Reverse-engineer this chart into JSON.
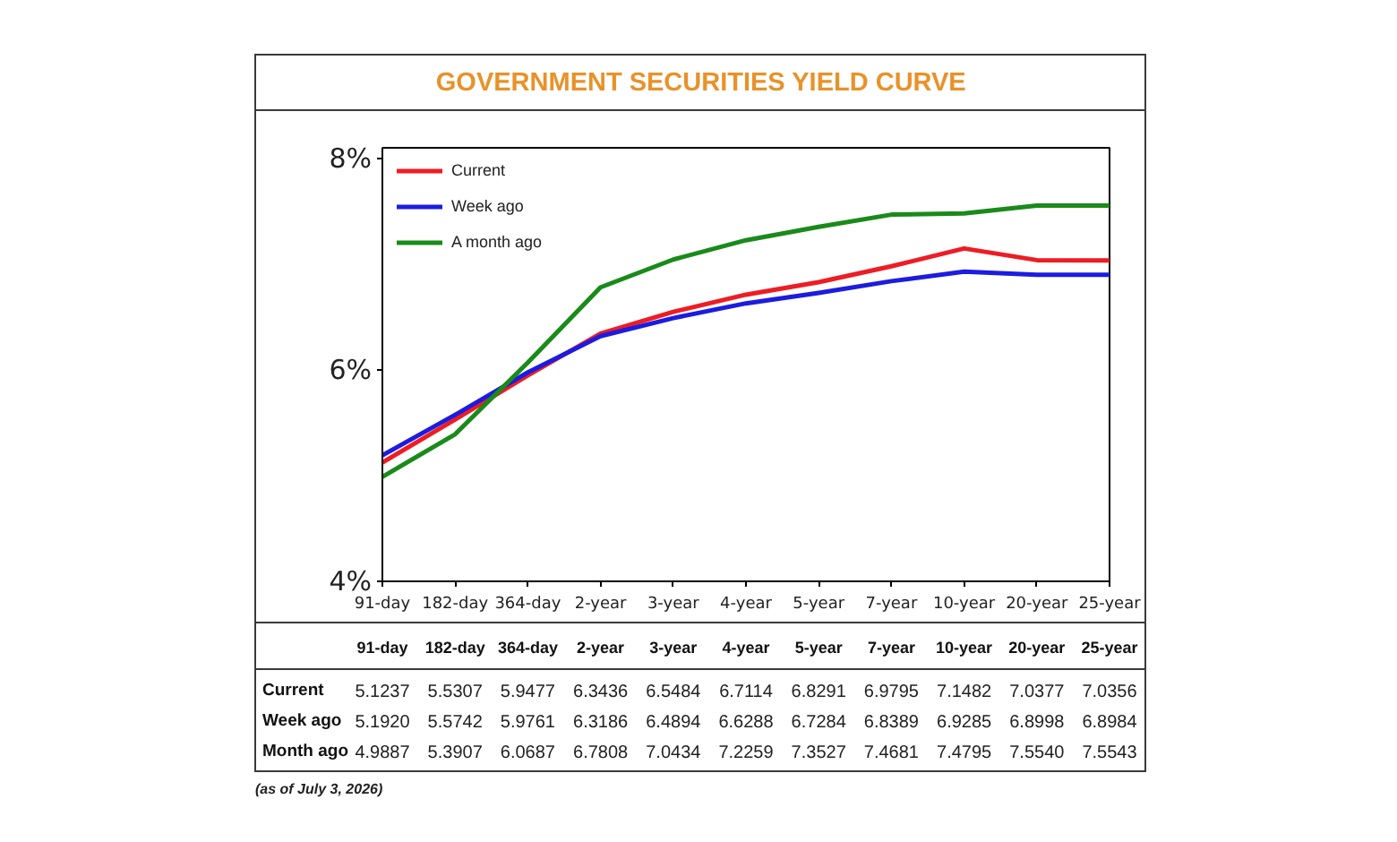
{
  "chart_data": {
    "type": "line",
    "title": "GOVERNMENT SECURITIES YIELD CURVE",
    "categories": [
      "91-day",
      "182-day",
      "364-day",
      "2-year",
      "3-year",
      "4-year",
      "5-year",
      "7-year",
      "10-year",
      "20-year",
      "25-year"
    ],
    "series": [
      {
        "name": "Current",
        "color": "#ee1c24",
        "values": [
          5.1237,
          5.5307,
          5.9477,
          6.3436,
          6.5484,
          6.7114,
          6.8291,
          6.9795,
          7.1482,
          7.0377,
          7.0356
        ],
        "value_labels": [
          "5.1237",
          "5.5307",
          "5.9477",
          "6.3436",
          "6.5484",
          "6.7114",
          "6.8291",
          "6.9795",
          "7.1482",
          "7.0377",
          "7.0356"
        ]
      },
      {
        "name": "Week ago",
        "color": "#1c1ce0",
        "values": [
          5.192,
          5.5742,
          5.9761,
          6.3186,
          6.4894,
          6.6288,
          6.7284,
          6.8389,
          6.9285,
          6.8998,
          6.8984
        ],
        "value_labels": [
          "5.1920",
          "5.5742",
          "5.9761",
          "6.3186",
          "6.4894",
          "6.6288",
          "6.7284",
          "6.8389",
          "6.9285",
          "6.8998",
          "6.8984"
        ]
      },
      {
        "name": "A month ago",
        "color": "#1a8a1a",
        "values": [
          4.9887,
          5.3907,
          6.0687,
          6.7808,
          7.0434,
          7.2259,
          7.3527,
          7.4681,
          7.4795,
          7.554,
          7.5543
        ],
        "value_labels": [
          "4.9887",
          "5.3907",
          "6.0687",
          "6.7808",
          "7.0434",
          "7.2259",
          "7.3527",
          "7.4681",
          "7.4795",
          "7.5540",
          "7.5543"
        ]
      }
    ],
    "ylim": [
      4,
      8.1
    ],
    "yticks": [
      {
        "value": 4,
        "label": "4%"
      },
      {
        "value": 6,
        "label": "6%"
      },
      {
        "value": 8,
        "label": "8%"
      }
    ],
    "grid": false,
    "legend": "top left",
    "annotations": [
      "Current",
      "Week ago",
      "Month ago",
      "(as of July 3, 2026)"
    ]
  }
}
